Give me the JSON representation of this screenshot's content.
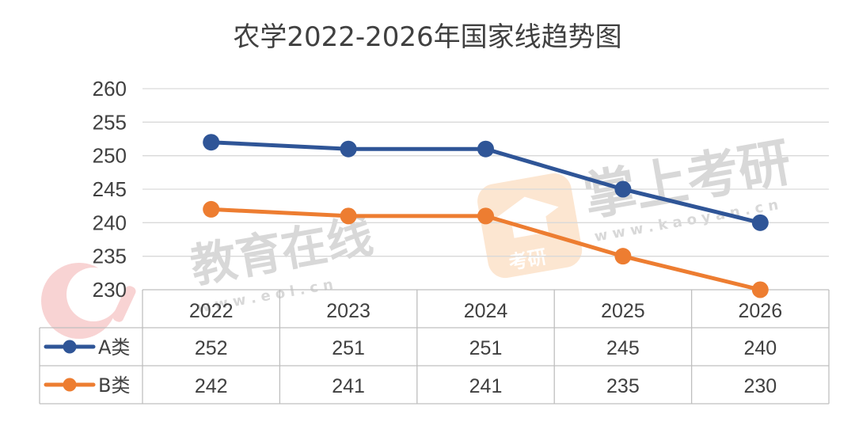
{
  "chart_data": {
    "type": "line",
    "title": "农学2022-2026年国家线趋势图",
    "categories": [
      "2022",
      "2023",
      "2024",
      "2025",
      "2026"
    ],
    "series": [
      {
        "name": "A类",
        "values": [
          252,
          251,
          251,
          245,
          240
        ],
        "color": "#2F5597"
      },
      {
        "name": "B类",
        "values": [
          242,
          241,
          241,
          235,
          230
        ],
        "color": "#ED7D31"
      }
    ],
    "ylim": [
      230,
      260
    ],
    "yticks": [
      230,
      235,
      240,
      245,
      250,
      255,
      260
    ],
    "grid": true,
    "legend": "data-table-rows",
    "data_table": true
  },
  "watermarks": [
    {
      "text": "教育在线",
      "sub": "w w w . e o l . c n",
      "logo": "eol-logo"
    },
    {
      "text": "掌上考研",
      "sub": "w w w . k a o y a n . c n",
      "logo": "graduation-cap-icon",
      "badge": "考研"
    }
  ]
}
